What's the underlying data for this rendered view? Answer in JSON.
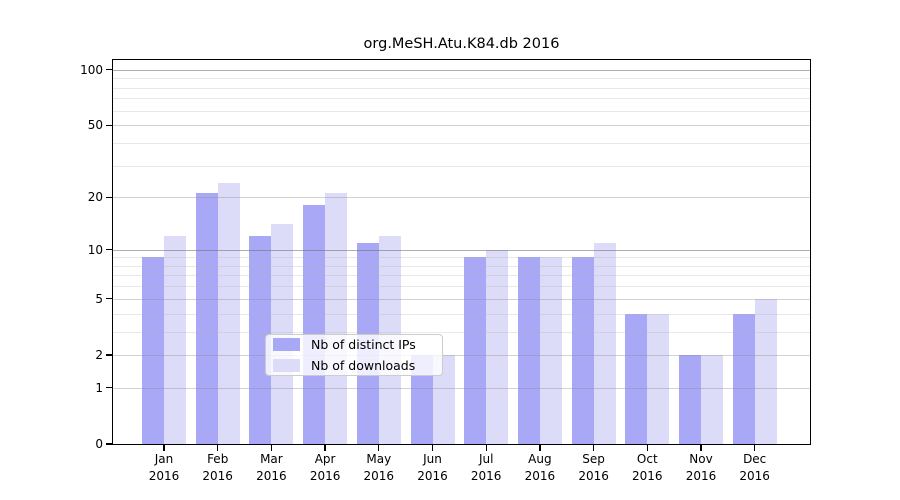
{
  "title": "org.MeSH.Atu.K84.db 2016",
  "chart_data": {
    "type": "bar",
    "title": "org.MeSH.Atu.K84.db 2016",
    "categories": [
      "Jan 2016",
      "Feb 2016",
      "Mar 2016",
      "Apr 2016",
      "May 2016",
      "Jun 2016",
      "Jul 2016",
      "Aug 2016",
      "Sep 2016",
      "Oct 2016",
      "Nov 2016",
      "Dec 2016"
    ],
    "x_tick_labels": [
      {
        "month": "Jan",
        "year": "2016"
      },
      {
        "month": "Feb",
        "year": "2016"
      },
      {
        "month": "Mar",
        "year": "2016"
      },
      {
        "month": "Apr",
        "year": "2016"
      },
      {
        "month": "May",
        "year": "2016"
      },
      {
        "month": "Jun",
        "year": "2016"
      },
      {
        "month": "Jul",
        "year": "2016"
      },
      {
        "month": "Aug",
        "year": "2016"
      },
      {
        "month": "Sep",
        "year": "2016"
      },
      {
        "month": "Oct",
        "year": "2016"
      },
      {
        "month": "Nov",
        "year": "2016"
      },
      {
        "month": "Dec",
        "year": "2016"
      }
    ],
    "series": [
      {
        "name": "Nb of distinct IPs",
        "color": "#a8a8f7",
        "values": [
          9,
          21,
          12,
          18,
          11,
          2,
          9,
          9,
          9,
          4,
          2,
          4
        ]
      },
      {
        "name": "Nb of downloads",
        "color": "#dcdcf8",
        "values": [
          12,
          24,
          14,
          21,
          12,
          2,
          10,
          9,
          11,
          4,
          2,
          5
        ]
      }
    ],
    "y_axis": {
      "scale": "log1p",
      "ticks": [
        0,
        1,
        2,
        5,
        10,
        20,
        50,
        100
      ],
      "minor_gridlines": [
        3,
        4,
        6,
        7,
        8,
        9,
        30,
        40,
        60,
        70,
        80,
        90
      ],
      "emphasized_gridlines": [
        10,
        100
      ],
      "ylim": [
        0,
        112
      ]
    },
    "legend": {
      "position": "lower center inside",
      "entries": [
        "Nb of distinct IPs",
        "Nb of downloads"
      ]
    },
    "grid": true
  },
  "colors": {
    "background": "#ffffff",
    "bar_distinct_ips": "#a8a8f7",
    "bar_downloads": "#dcdcf8",
    "gridline_minor": "#e8e8e8",
    "gridline_labeled": "#d2d2d2",
    "gridline_emphasized": "#b0b0b0",
    "frame": "#000000",
    "text": "#000000",
    "legend_border": "#cccccc"
  }
}
